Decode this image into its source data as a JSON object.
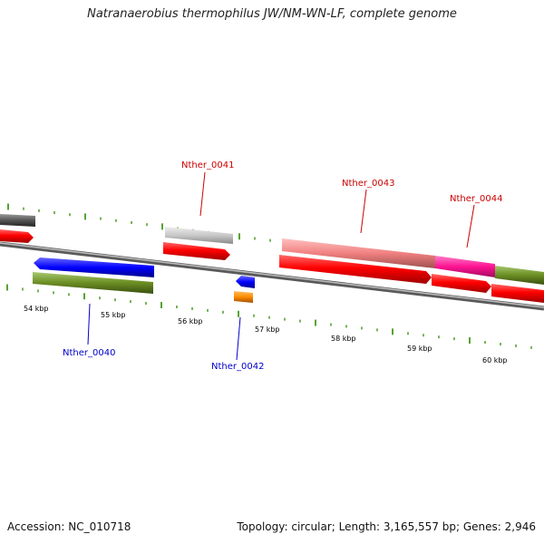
{
  "title": "Natranaerobius thermophilus JW/NM-WN-LF, complete genome",
  "footer": {
    "accession": "Accession: NC_010718",
    "summary": "Topology: circular; Length: 3,165,557 bp; Genes: 2,946"
  },
  "scale_labels": [
    "54 kbp",
    "55 kbp",
    "56 kbp",
    "57 kbp",
    "58 kbp",
    "59 kbp",
    "60 kbp"
  ],
  "gene_labels": [
    {
      "text": "Nther_0040",
      "strand": "reverse"
    },
    {
      "text": "Nther_0041",
      "strand": "forward"
    },
    {
      "text": "Nther_0042",
      "strand": "reverse"
    },
    {
      "text": "Nther_0043",
      "strand": "forward"
    },
    {
      "text": "Nther_0044",
      "strand": "forward"
    }
  ],
  "colors": {
    "forward_label": "#cc0000",
    "reverse_label": "#0000cc",
    "backbone": "#888888",
    "tick": "#2e8b00",
    "cds": "#ff0000",
    "gray_feature": "#c8c8c8",
    "dark_gray_feature": "#555555",
    "pink_feature": "#f08080",
    "magenta_feature": "#ff1493",
    "olive_feature": "#6b8e23",
    "blue_feature": "#0000ff",
    "orange_feature": "#ff8c00"
  }
}
